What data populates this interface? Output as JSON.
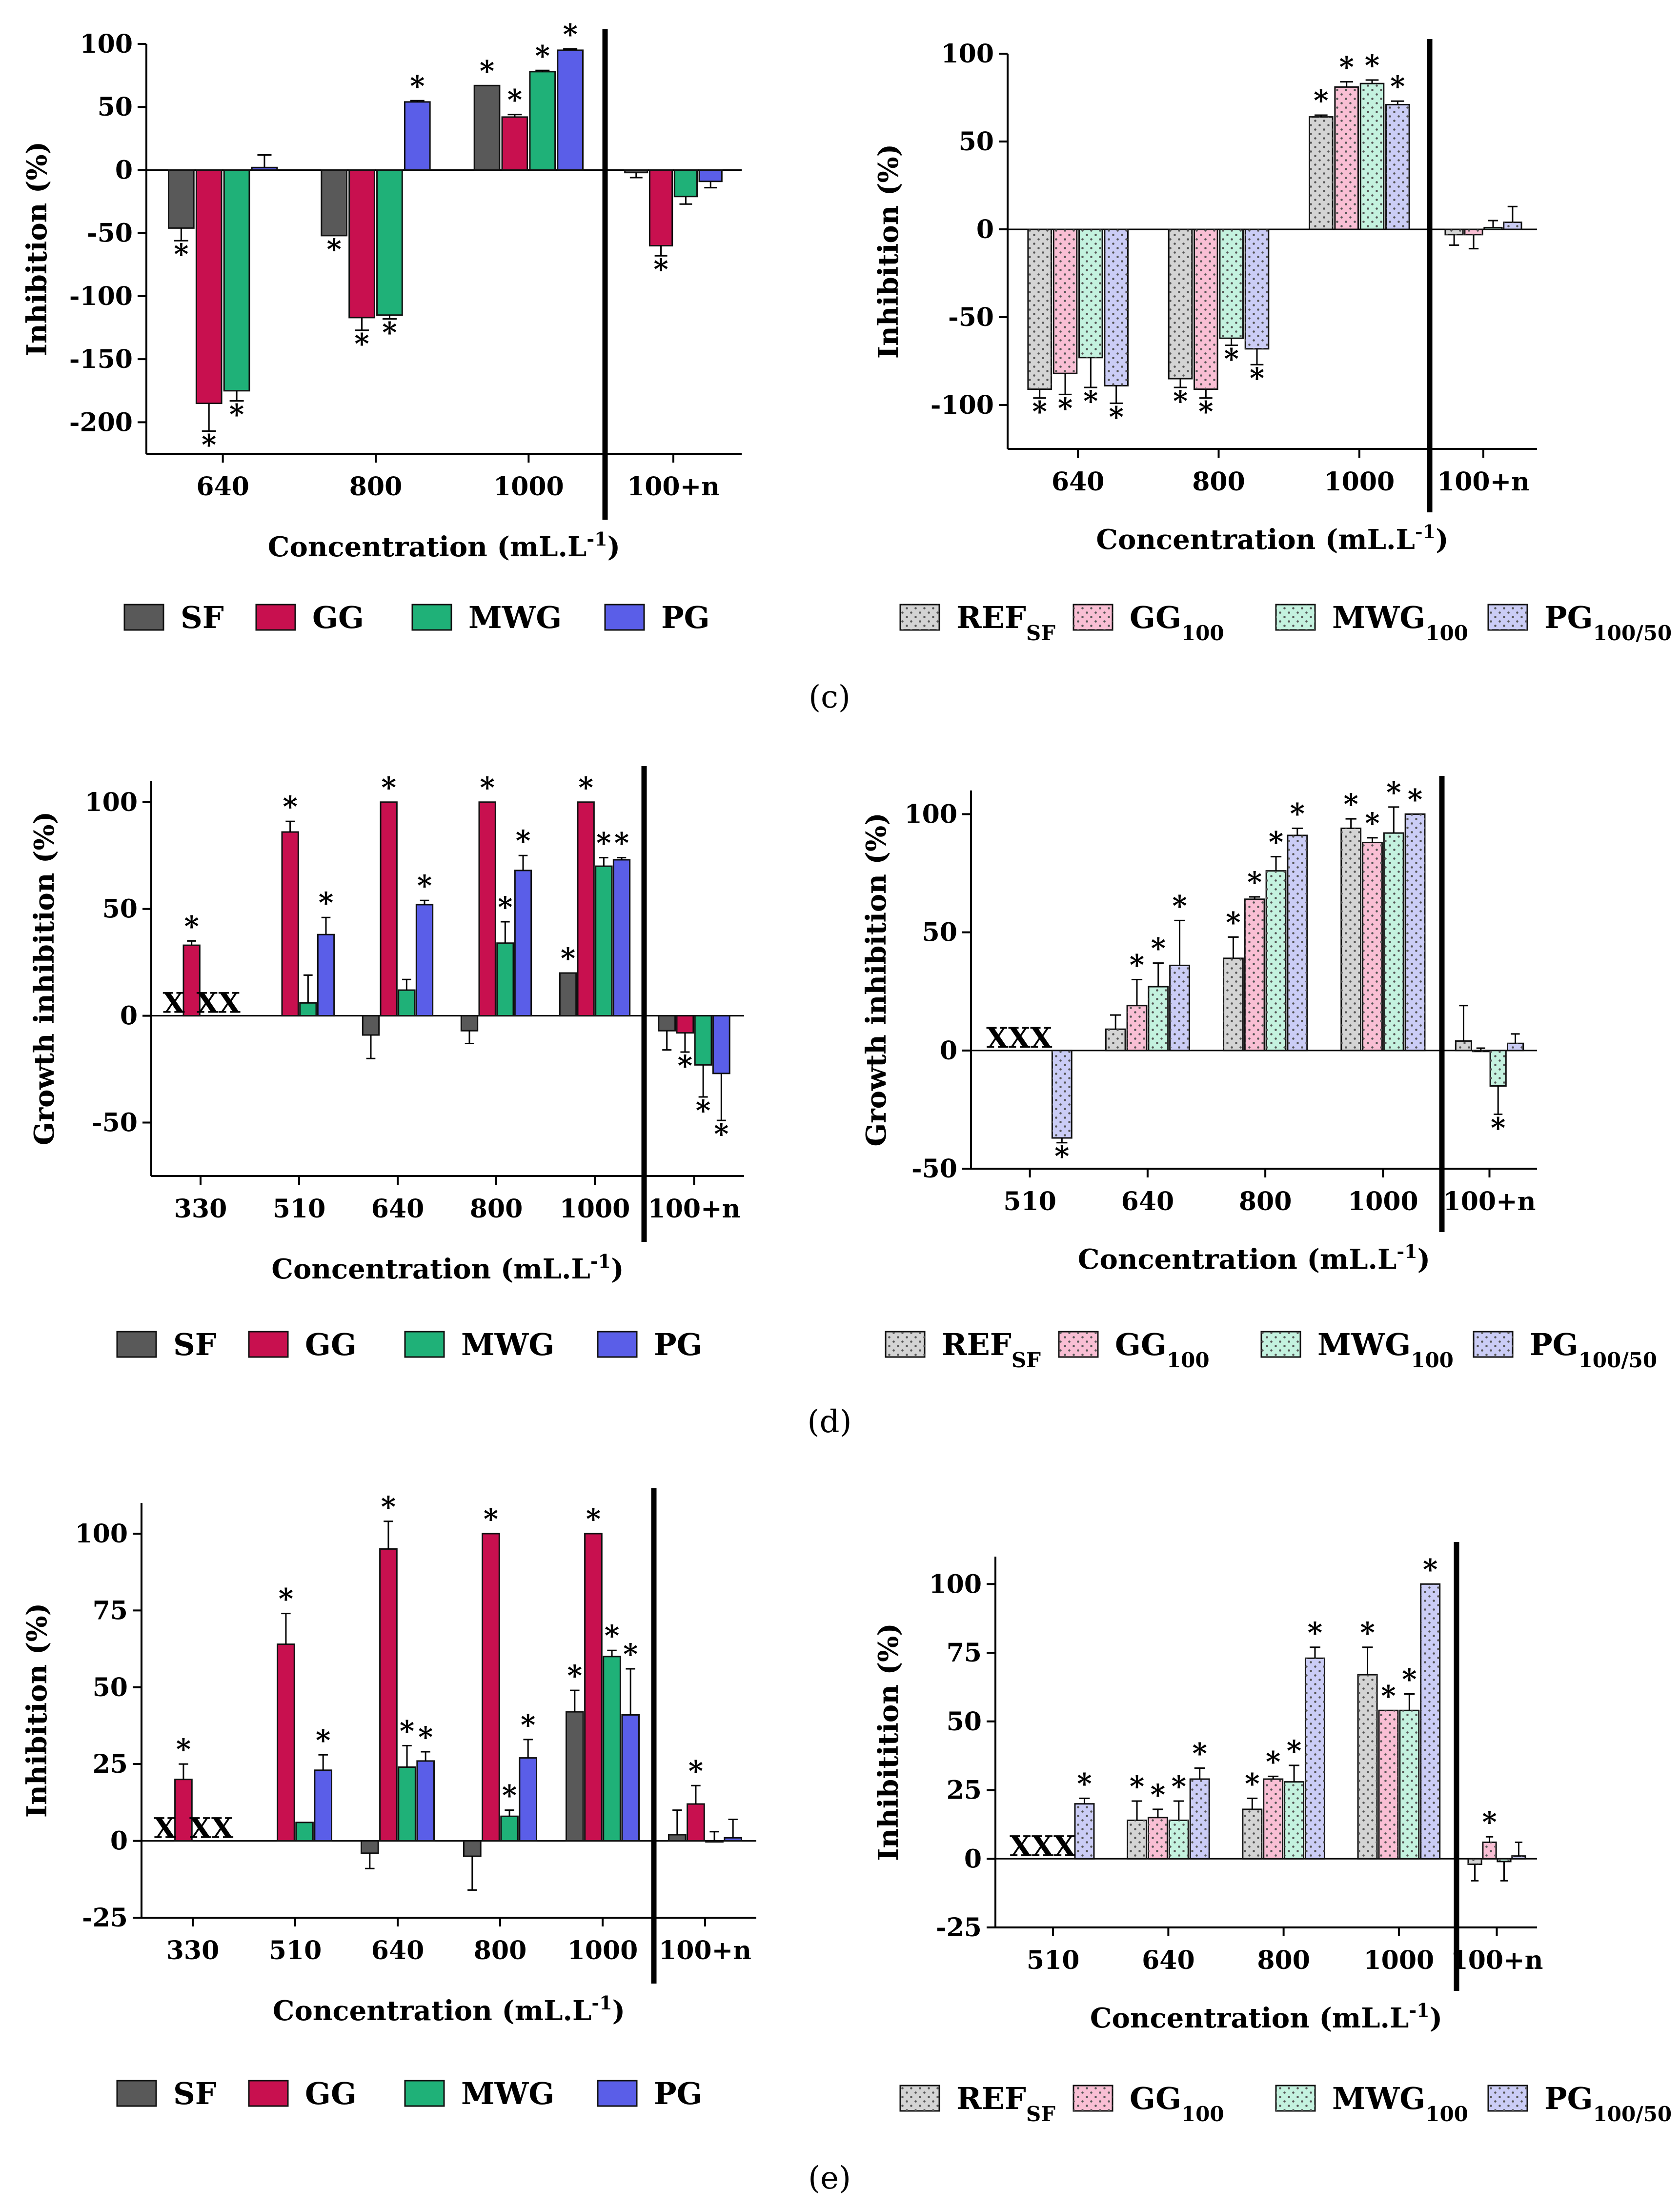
{
  "colors": {
    "SF": "#595959",
    "GG": "#c8104f",
    "MWG": "#1fb178",
    "PG": "#5a5ee8",
    "REF_SF": "#d4d4d4",
    "GG100": "#f9bfd4",
    "MWG100": "#c4f2df",
    "PG100": "#cbcdf6"
  },
  "legends": {
    "left": [
      {
        "key": "SF",
        "label": "SF"
      },
      {
        "key": "GG",
        "label": "GG"
      },
      {
        "key": "MWG",
        "label": "MWG"
      },
      {
        "key": "PG",
        "label": "PG"
      }
    ],
    "right": [
      {
        "key": "REF_SF",
        "label": "REF",
        "sub": "SF"
      },
      {
        "key": "GG100",
        "label": "GG",
        "sub": "100"
      },
      {
        "key": "MWG100",
        "label": "MWG",
        "sub": "100"
      },
      {
        "key": "PG100",
        "label": "PG",
        "sub": "100/50"
      }
    ]
  },
  "panel_labels": {
    "c": "(c)",
    "d": "(d)",
    "e": "(e)"
  },
  "chart_data": [
    {
      "id": "c-left",
      "type": "bar",
      "panel": "c",
      "ylabel": "Inhibition (%)",
      "xlabel": "Concentration (mL.L",
      "xlabel_sup": "-1",
      "xlabel_end": ")",
      "ylim": [
        -225,
        100
      ],
      "yticks": [
        100,
        50,
        0,
        -50,
        -100,
        -150,
        -200
      ],
      "categories": [
        "640",
        "800",
        "1000",
        "100+n"
      ],
      "series_keys": [
        "SF",
        "GG",
        "MWG",
        "PG"
      ],
      "values": [
        [
          -46,
          -185,
          -175,
          2
        ],
        [
          -52,
          -117,
          -115,
          54
        ],
        [
          67,
          42,
          78,
          95
        ],
        [
          -2,
          -60,
          -21,
          -9
        ]
      ],
      "errors": [
        [
          10,
          22,
          8,
          10
        ],
        [
          0,
          10,
          3,
          1
        ],
        [
          0,
          2,
          1,
          1
        ],
        [
          4,
          8,
          6,
          5
        ]
      ],
      "stars": [
        [
          1,
          1,
          1,
          0
        ],
        [
          1,
          1,
          1,
          1
        ],
        [
          1,
          1,
          1,
          1
        ],
        [
          0,
          1,
          0,
          0
        ]
      ]
    },
    {
      "id": "c-right",
      "type": "bar",
      "panel": "c",
      "ylabel": "Inhibition (%)",
      "xlabel": "Concentration (mL.L",
      "xlabel_sup": "-1",
      "xlabel_end": ")",
      "ylim": [
        -125,
        100
      ],
      "yticks": [
        100,
        50,
        0,
        -50,
        -100
      ],
      "categories": [
        "640",
        "800",
        "1000",
        "100+n"
      ],
      "series_keys": [
        "REF_SF",
        "GG100",
        "MWG100",
        "PG100"
      ],
      "values": [
        [
          -91,
          -82,
          -73,
          -89
        ],
        [
          -85,
          -91,
          -62,
          -68
        ],
        [
          64,
          81,
          83,
          71
        ],
        [
          -3,
          -3,
          1,
          4
        ]
      ],
      "errors": [
        [
          5,
          12,
          17,
          10
        ],
        [
          5,
          5,
          4,
          9
        ],
        [
          1,
          3,
          2,
          2
        ],
        [
          6,
          8,
          4,
          9
        ]
      ],
      "stars": [
        [
          1,
          1,
          1,
          1
        ],
        [
          1,
          1,
          1,
          1
        ],
        [
          1,
          1,
          1,
          1
        ],
        [
          0,
          0,
          0,
          0
        ]
      ]
    },
    {
      "id": "d-left",
      "type": "bar",
      "panel": "d",
      "ylabel": "Growth inhibition (%)",
      "xlabel": "Concentration (mL.L",
      "xlabel_sup": "-1",
      "xlabel_end": ")",
      "ylim": [
        -75,
        110
      ],
      "yticks": [
        100,
        50,
        0,
        -50
      ],
      "categories": [
        "330",
        "510",
        "640",
        "800",
        "1000",
        "100+n"
      ],
      "series_keys": [
        "SF",
        "GG",
        "MWG",
        "PG"
      ],
      "values": [
        [
          null,
          33,
          null,
          null
        ],
        [
          null,
          86,
          6,
          38
        ],
        [
          -9,
          100,
          12,
          52
        ],
        [
          -7,
          100,
          34,
          68
        ],
        [
          20,
          100,
          70,
          73
        ],
        [
          -7,
          -8,
          -23,
          -27
        ]
      ],
      "errors": [
        [
          0,
          2,
          0,
          0
        ],
        [
          0,
          5,
          13,
          8
        ],
        [
          11,
          0,
          5,
          2
        ],
        [
          6,
          0,
          10,
          7
        ],
        [
          0,
          0,
          4,
          1
        ],
        [
          9,
          9,
          15,
          22
        ]
      ],
      "stars": [
        [
          0,
          1,
          0,
          0
        ],
        [
          0,
          1,
          0,
          1
        ],
        [
          0,
          1,
          0,
          1
        ],
        [
          0,
          1,
          1,
          1
        ],
        [
          1,
          1,
          1,
          1
        ],
        [
          0,
          1,
          1,
          1
        ]
      ],
      "missing": [
        {
          "category": "330",
          "text": "X",
          "slot": 0
        },
        {
          "category": "330",
          "text": "XX",
          "slot": 2.5
        }
      ]
    },
    {
      "id": "d-right",
      "type": "bar",
      "panel": "d",
      "ylabel": "Growth inhibition (%)",
      "xlabel": "Concentration (mL.L",
      "xlabel_sup": "-1",
      "xlabel_end": ")",
      "ylim": [
        -50,
        110
      ],
      "yticks": [
        100,
        50,
        0,
        -50
      ],
      "categories": [
        "510",
        "640",
        "800",
        "1000",
        "100+n"
      ],
      "series_keys": [
        "REF_SF",
        "GG100",
        "MWG100",
        "PG100"
      ],
      "values": [
        [
          null,
          null,
          null,
          -37
        ],
        [
          9,
          19,
          27,
          36
        ],
        [
          39,
          64,
          76,
          91
        ],
        [
          94,
          88,
          92,
          100
        ],
        [
          4,
          0,
          -15,
          3
        ]
      ],
      "errors": [
        [
          0,
          0,
          0,
          2
        ],
        [
          6,
          11,
          10,
          19
        ],
        [
          9,
          1,
          6,
          3
        ],
        [
          4,
          2,
          11,
          0
        ],
        [
          15,
          1,
          12,
          4
        ]
      ],
      "stars": [
        [
          0,
          0,
          0,
          1
        ],
        [
          0,
          1,
          1,
          1
        ],
        [
          1,
          1,
          1,
          1
        ],
        [
          1,
          1,
          1,
          1
        ],
        [
          0,
          0,
          1,
          0
        ]
      ],
      "missing": [
        {
          "category": "510",
          "text": "XXX",
          "slot": 1
        }
      ]
    },
    {
      "id": "e-left",
      "type": "bar",
      "panel": "e",
      "ylabel": "Inhibition (%)",
      "xlabel": "Concentration (mL.L",
      "xlabel_sup": "-1",
      "xlabel_end": ")",
      "ylim": [
        -25,
        110
      ],
      "yticks": [
        100,
        75,
        50,
        25,
        0,
        -25
      ],
      "categories": [
        "330",
        "510",
        "640",
        "800",
        "1000",
        "100+n"
      ],
      "series_keys": [
        "SF",
        "GG",
        "MWG",
        "PG"
      ],
      "values": [
        [
          null,
          20,
          null,
          null
        ],
        [
          null,
          64,
          6,
          23
        ],
        [
          -4,
          95,
          24,
          26
        ],
        [
          -5,
          100,
          8,
          27
        ],
        [
          42,
          100,
          60,
          41
        ],
        [
          2,
          12,
          0,
          1
        ]
      ],
      "errors": [
        [
          0,
          5,
          0,
          0
        ],
        [
          0,
          10,
          0,
          5
        ],
        [
          5,
          9,
          7,
          3
        ],
        [
          11,
          0,
          2,
          6
        ],
        [
          7,
          0,
          2,
          15
        ],
        [
          8,
          6,
          3,
          6
        ]
      ],
      "stars": [
        [
          0,
          1,
          0,
          0
        ],
        [
          0,
          1,
          0,
          1
        ],
        [
          0,
          1,
          1,
          1
        ],
        [
          0,
          1,
          1,
          1
        ],
        [
          1,
          1,
          1,
          1
        ],
        [
          0,
          1,
          0,
          0
        ]
      ],
      "missing": [
        {
          "category": "330",
          "text": "X",
          "slot": 0
        },
        {
          "category": "330",
          "text": "XX",
          "slot": 2.5
        }
      ]
    },
    {
      "id": "e-right",
      "type": "bar",
      "panel": "e",
      "ylabel": "Inhibitition (%)",
      "xlabel": "Concentration (mL.L",
      "xlabel_sup": "-1",
      "xlabel_end": ")",
      "ylim": [
        -25,
        110
      ],
      "yticks": [
        100,
        75,
        50,
        25,
        0,
        -25
      ],
      "categories": [
        "510",
        "640",
        "800",
        "1000",
        "100+n"
      ],
      "series_keys": [
        "REF_SF",
        "GG100",
        "MWG100",
        "PG100"
      ],
      "values": [
        [
          null,
          null,
          null,
          20
        ],
        [
          14,
          15,
          14,
          29
        ],
        [
          18,
          29,
          28,
          73
        ],
        [
          67,
          54,
          54,
          100
        ],
        [
          -2,
          6,
          -1,
          1
        ]
      ],
      "errors": [
        [
          0,
          0,
          0,
          2
        ],
        [
          7,
          3,
          7,
          4
        ],
        [
          4,
          1,
          6,
          4
        ],
        [
          10,
          0,
          6,
          0
        ],
        [
          6,
          2,
          7,
          5
        ]
      ],
      "stars": [
        [
          0,
          0,
          0,
          1
        ],
        [
          1,
          1,
          1,
          1
        ],
        [
          1,
          1,
          1,
          1
        ],
        [
          1,
          1,
          1,
          1
        ],
        [
          0,
          1,
          0,
          0
        ]
      ],
      "missing": [
        {
          "category": "510",
          "text": "XXX",
          "slot": 1
        }
      ]
    }
  ]
}
